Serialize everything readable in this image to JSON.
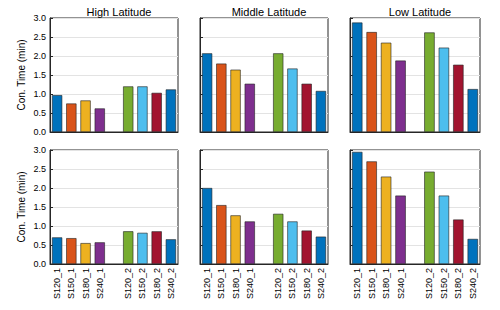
{
  "chart_data": [
    {
      "type": "bar",
      "title": "High Latitude",
      "ylabel": "Con. Time (min)",
      "categories": [
        "S120_1",
        "S150_1",
        "S180_1",
        "S240_1",
        null,
        "S120_2",
        "S150_2",
        "S180_2",
        "S240_2"
      ],
      "values": [
        0.97,
        0.75,
        0.83,
        0.62,
        null,
        1.2,
        1.2,
        1.03,
        1.12
      ],
      "colors": [
        "#0072BD",
        "#D95319",
        "#EDB120",
        "#7E2F8E",
        "#000000",
        "#77AC30",
        "#4DBEEE",
        "#A2142F",
        "#0072BD"
      ],
      "ylim": [
        0,
        3
      ],
      "yticks": [
        {
          "value": 0,
          "label": "0.0"
        },
        {
          "value": 0.5,
          "label": "0.5"
        },
        {
          "value": 1,
          "label": "1.0"
        },
        {
          "value": 1.5,
          "label": "1.5"
        },
        {
          "value": 2,
          "label": "2.0"
        },
        {
          "value": 2.5,
          "label": "2.5"
        },
        {
          "value": 3,
          "label": "3.0"
        }
      ],
      "grid": true,
      "tick_labels": "y"
    },
    {
      "type": "bar",
      "title": "Middle Latitude",
      "categories": [
        "S120_1",
        "S150_1",
        "S180_1",
        "S240_1",
        null,
        "S120_2",
        "S150_2",
        "S180_2",
        "S240_2"
      ],
      "values": [
        2.07,
        1.8,
        1.64,
        1.27,
        null,
        2.07,
        1.67,
        1.27,
        1.08
      ],
      "colors": [
        "#0072BD",
        "#D95319",
        "#EDB120",
        "#7E2F8E",
        "#000000",
        "#77AC30",
        "#4DBEEE",
        "#A2142F",
        "#0072BD"
      ],
      "ylim": [
        0,
        3
      ],
      "yticks": [
        {
          "value": 0,
          "label": "0.0"
        },
        {
          "value": 0.5,
          "label": "0.5"
        },
        {
          "value": 1,
          "label": "1.0"
        },
        {
          "value": 1.5,
          "label": "1.5"
        },
        {
          "value": 2,
          "label": "2.0"
        },
        {
          "value": 2.5,
          "label": "2.5"
        },
        {
          "value": 3,
          "label": "3.0"
        }
      ],
      "grid": true,
      "tick_labels": false
    },
    {
      "type": "bar",
      "title": "Low Latitude",
      "categories": [
        "S120_1",
        "S150_1",
        "S180_1",
        "S240_1",
        null,
        "S120_2",
        "S150_2",
        "S180_2",
        "S240_2"
      ],
      "values": [
        2.88,
        2.63,
        2.35,
        1.88,
        null,
        2.62,
        2.22,
        1.77,
        1.13
      ],
      "colors": [
        "#0072BD",
        "#D95319",
        "#EDB120",
        "#7E2F8E",
        "#000000",
        "#77AC30",
        "#4DBEEE",
        "#A2142F",
        "#0072BD"
      ],
      "ylim": [
        0,
        3
      ],
      "yticks": [
        {
          "value": 0,
          "label": "0.0"
        },
        {
          "value": 0.5,
          "label": "0.5"
        },
        {
          "value": 1,
          "label": "1.0"
        },
        {
          "value": 1.5,
          "label": "1.5"
        },
        {
          "value": 2,
          "label": "2.0"
        },
        {
          "value": 2.5,
          "label": "2.5"
        },
        {
          "value": 3,
          "label": "3.0"
        }
      ],
      "grid": true,
      "tick_labels": false
    },
    {
      "type": "bar",
      "ylabel": "Con. Time (min)",
      "categories": [
        "S120_1",
        "S150_1",
        "S180_1",
        "S240_1",
        null,
        "S120_2",
        "S150_2",
        "S180_2",
        "S240_2"
      ],
      "values": [
        0.7,
        0.68,
        0.55,
        0.57,
        null,
        0.86,
        0.82,
        0.86,
        0.65
      ],
      "colors": [
        "#0072BD",
        "#D95319",
        "#EDB120",
        "#7E2F8E",
        "#000000",
        "#77AC30",
        "#4DBEEE",
        "#A2142F",
        "#0072BD"
      ],
      "ylim": [
        0,
        3
      ],
      "yticks": [
        {
          "value": 0,
          "label": "0.0"
        },
        {
          "value": 0.5,
          "label": "0.5"
        },
        {
          "value": 1,
          "label": "1.0"
        },
        {
          "value": 1.5,
          "label": "1.5"
        },
        {
          "value": 2,
          "label": "2.0"
        },
        {
          "value": 2.5,
          "label": "2.5"
        },
        {
          "value": 3,
          "label": "3.0"
        }
      ],
      "grid": true
    },
    {
      "type": "bar",
      "categories": [
        "S120_1",
        "S150_1",
        "S180_1",
        "S240_1",
        null,
        "S120_2",
        "S150_2",
        "S180_2",
        "S240_2"
      ],
      "values": [
        2.0,
        1.55,
        1.28,
        1.12,
        null,
        1.32,
        1.12,
        0.88,
        0.72
      ],
      "colors": [
        "#0072BD",
        "#D95319",
        "#EDB120",
        "#7E2F8E",
        "#000000",
        "#77AC30",
        "#4DBEEE",
        "#A2142F",
        "#0072BD"
      ],
      "ylim": [
        0,
        3
      ],
      "yticks": [
        {
          "value": 0,
          "label": "0.0"
        },
        {
          "value": 0.5,
          "label": "0.5"
        },
        {
          "value": 1,
          "label": "1.0"
        },
        {
          "value": 1.5,
          "label": "1.5"
        },
        {
          "value": 2,
          "label": "2.0"
        },
        {
          "value": 2.5,
          "label": "2.5"
        },
        {
          "value": 3,
          "label": "3.0"
        }
      ],
      "grid": true,
      "tick_labels": "x"
    },
    {
      "type": "bar",
      "categories": [
        "S120_1",
        "S150_1",
        "S180_1",
        "S240_1",
        null,
        "S120_2",
        "S150_2",
        "S180_2",
        "S240_2"
      ],
      "values": [
        2.95,
        2.7,
        2.3,
        1.8,
        null,
        2.43,
        1.8,
        1.17,
        0.66
      ],
      "colors": [
        "#0072BD",
        "#D95319",
        "#EDB120",
        "#7E2F8E",
        "#000000",
        "#77AC30",
        "#4DBEEE",
        "#A2142F",
        "#0072BD"
      ],
      "ylim": [
        0,
        3
      ],
      "yticks": [
        {
          "value": 0,
          "label": "0.0"
        },
        {
          "value": 0.5,
          "label": "0.5"
        },
        {
          "value": 1,
          "label": "1.0"
        },
        {
          "value": 1.5,
          "label": "1.5"
        },
        {
          "value": 2,
          "label": "2.0"
        },
        {
          "value": 2.5,
          "label": "2.5"
        },
        {
          "value": 3,
          "label": "3.0"
        }
      ],
      "grid": true,
      "tick_labels": "x"
    }
  ]
}
